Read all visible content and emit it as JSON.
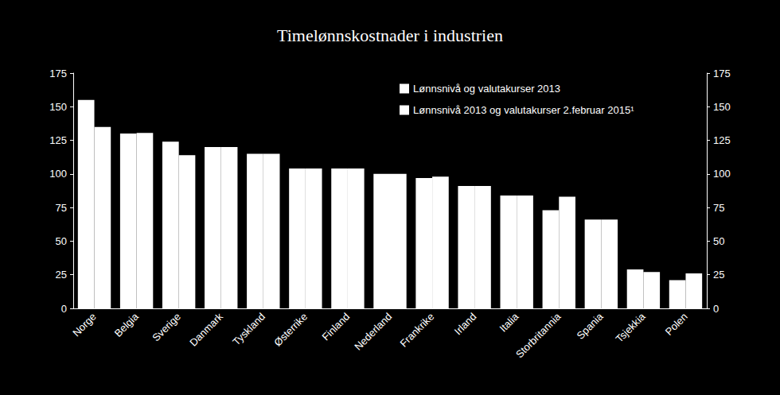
{
  "chart_data": {
    "type": "bar",
    "title": "Timelønnskostnader i industrien",
    "categories": [
      "Norge",
      "Belgia",
      "Sverige",
      "Danmark",
      "Tyskland",
      "Østerrike",
      "Finland",
      "Nederland",
      "Frankrike",
      "Irland",
      "Italia",
      "Storbritannia",
      "Spania",
      "Tsjekkia",
      "Polen"
    ],
    "series": [
      {
        "name": "Lønnsnivå og valutakurser 2013",
        "color": "#ffffff",
        "values": [
          155,
          130,
          124,
          120,
          115,
          104,
          104,
          100,
          97,
          91,
          84,
          73,
          66,
          29,
          21
        ]
      },
      {
        "name": "Lønnsnivå 2013 og valutakurser 2.februar 2015¹",
        "color": "#ffffff",
        "values": [
          135,
          130.5,
          114,
          120,
          115,
          104,
          104,
          100,
          98,
          91,
          84,
          83,
          66,
          27,
          26
        ]
      }
    ],
    "ylim": [
      0,
      175
    ],
    "yticks": [
      0,
      25,
      50,
      75,
      100,
      125,
      150,
      175
    ],
    "y2lim": [
      0,
      175
    ],
    "y2ticks": [
      0,
      25,
      50,
      75,
      100,
      125,
      150,
      175
    ],
    "grid": false,
    "legend": "upper right"
  }
}
